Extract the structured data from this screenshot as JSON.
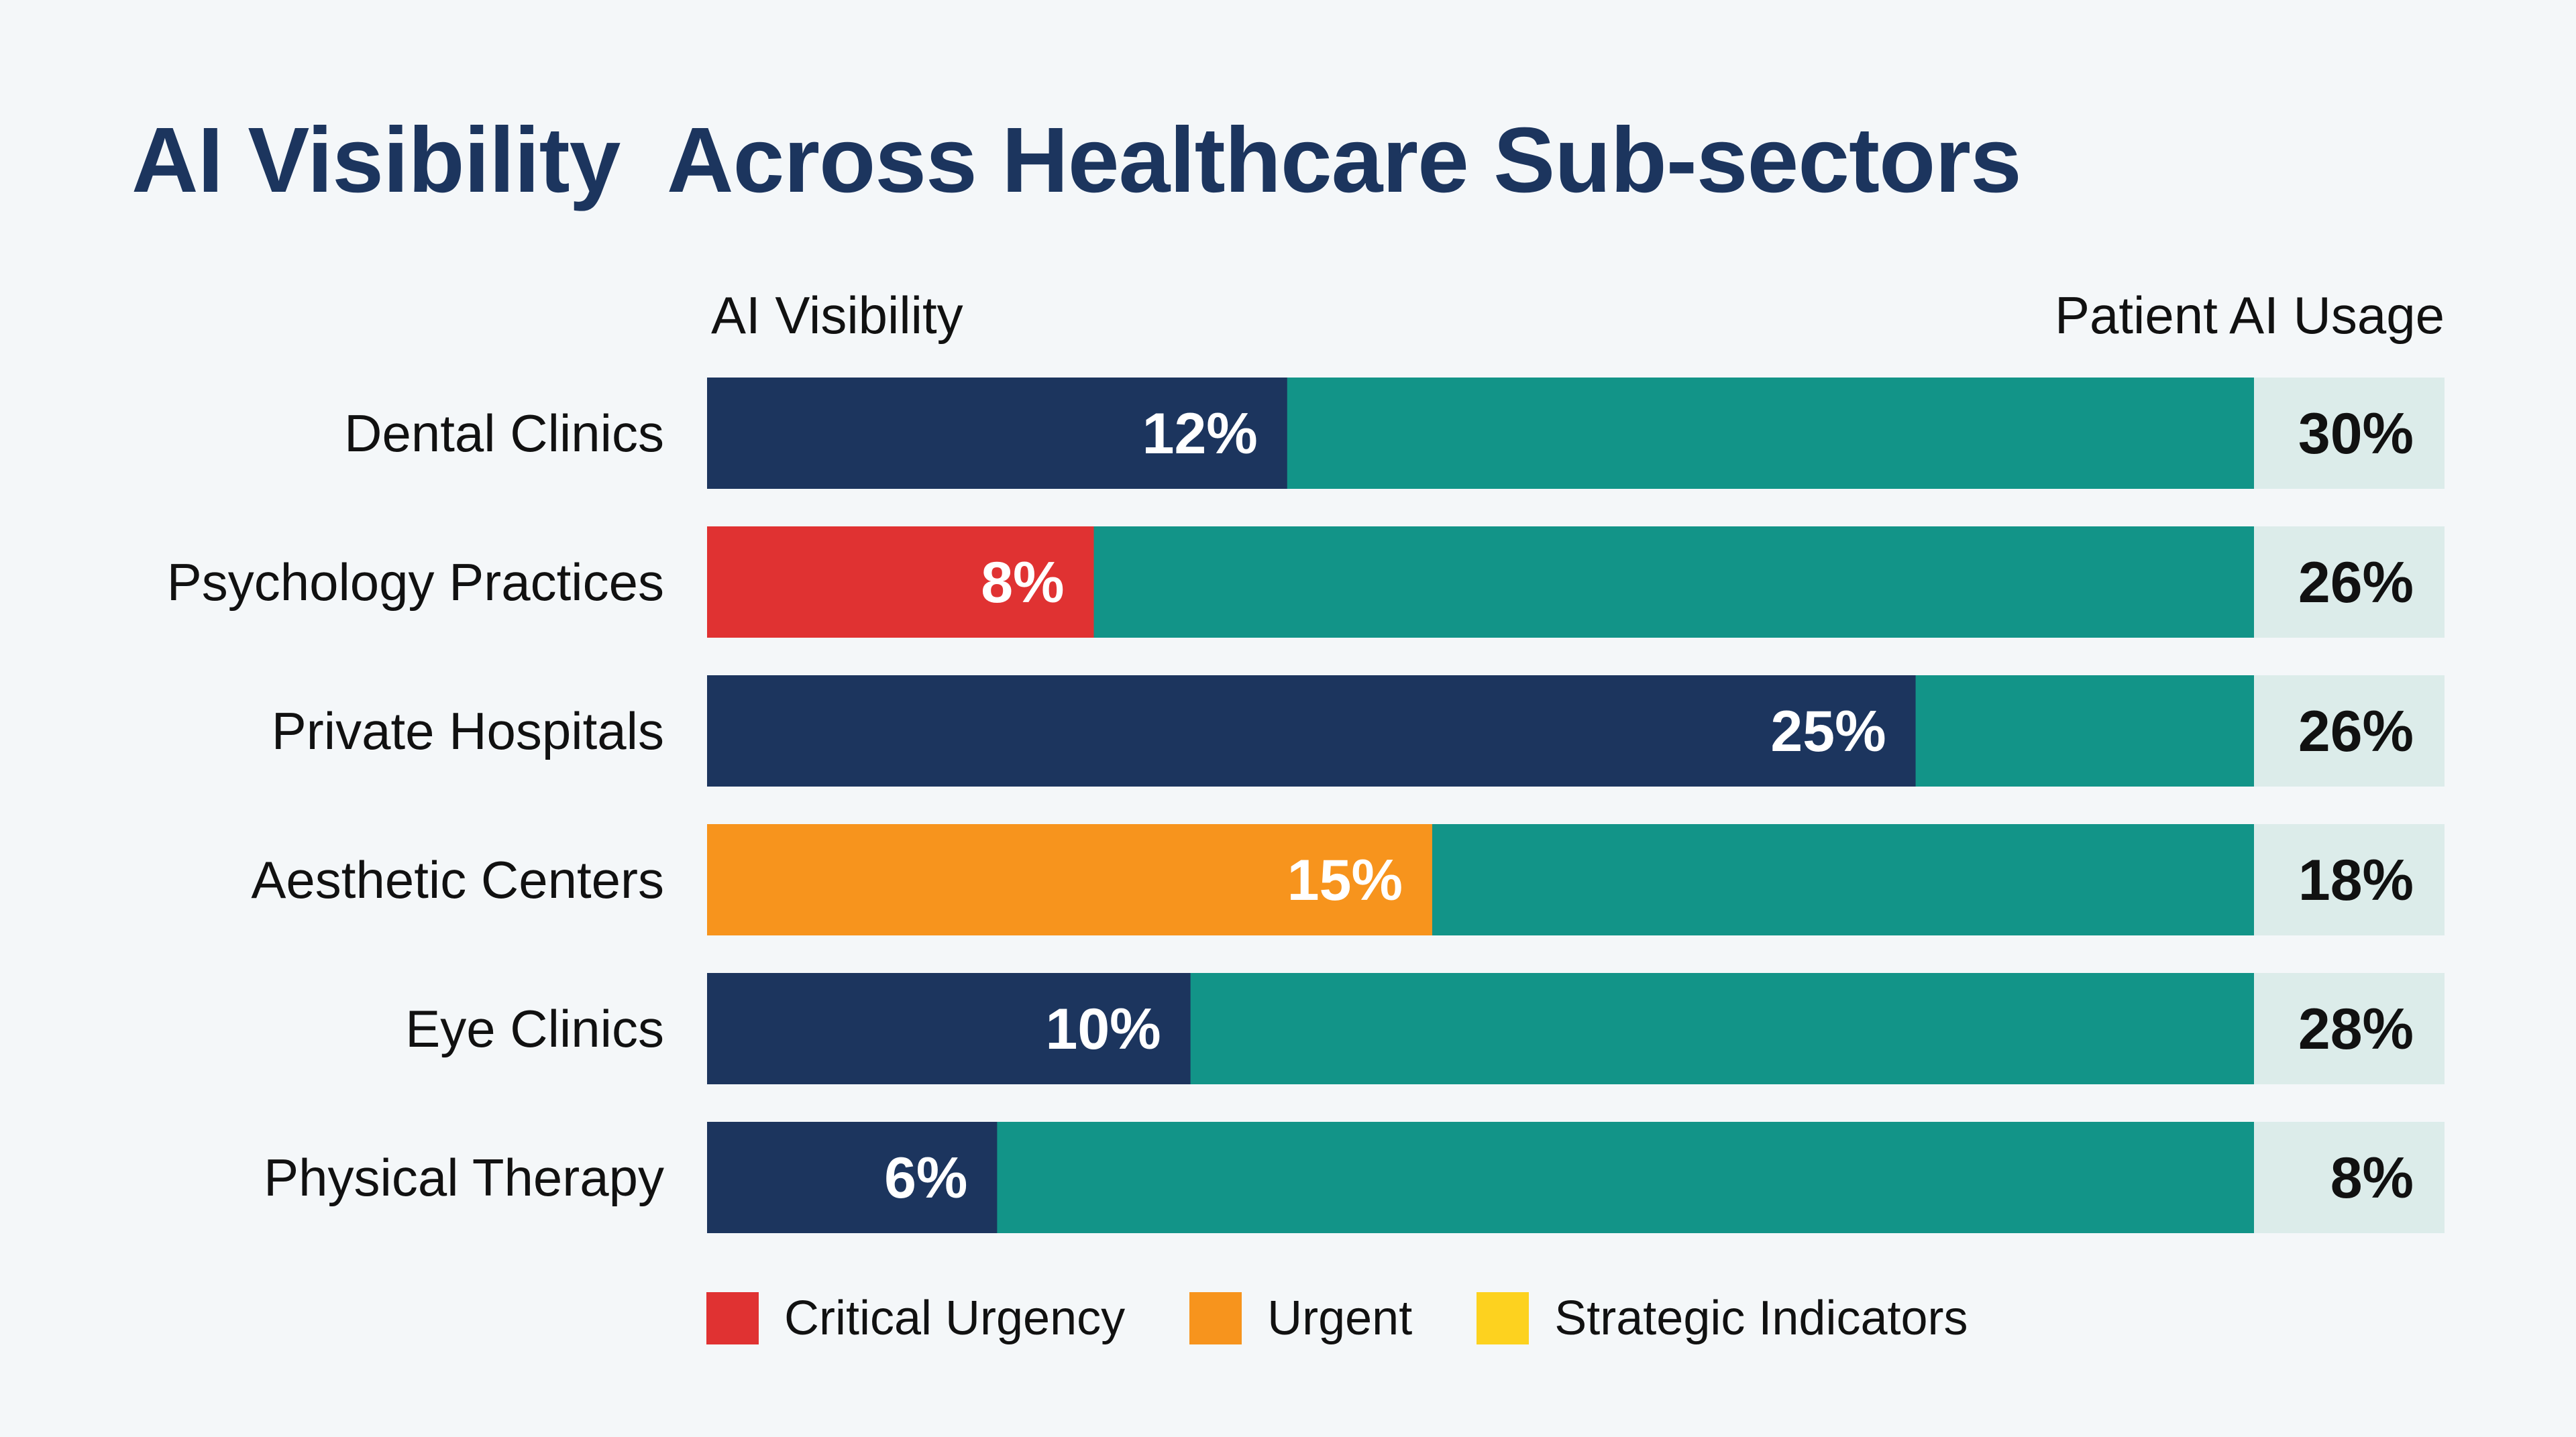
{
  "chart_data": {
    "type": "bar",
    "title": "AI Visibility  Across Healthcare Sub-sectors",
    "column_headers": {
      "left": "AI Visibility",
      "right": "Patient AI Usage"
    },
    "categories": [
      "Dental Clinics",
      "Psychology Practices",
      "Private Hospitals",
      "Aesthetic Centers",
      "Eye Clinics",
      "Physical Therapy"
    ],
    "series": [
      {
        "name": "AI Visibility",
        "values": [
          12,
          8,
          25,
          15,
          10,
          6
        ],
        "labels": [
          "12%",
          "8%",
          "25%",
          "15%",
          "10%",
          "6%"
        ],
        "colors": [
          "#1c355e",
          "#e03232",
          "#1c355e",
          "#f7941d",
          "#1c355e",
          "#1c355e"
        ]
      },
      {
        "name": "Patient AI Usage",
        "values": [
          30,
          26,
          26,
          18,
          28,
          8
        ],
        "labels": [
          "30%",
          "26%",
          "26%",
          "18%",
          "28%",
          "8%"
        ]
      }
    ],
    "xlim": [
      0,
      32
    ],
    "grid": false,
    "legend_position": "bottom",
    "legend": [
      {
        "label": "Critical Urgency",
        "color": "#e03232"
      },
      {
        "label": "Urgent",
        "color": "#f7941d"
      },
      {
        "label": "Strategic Indicators",
        "color": "#fdd21f"
      }
    ],
    "colors": {
      "track": "#129488",
      "usage_box": "#dcecea",
      "label_light": "#ffffff",
      "label_dark": "#111111"
    }
  }
}
